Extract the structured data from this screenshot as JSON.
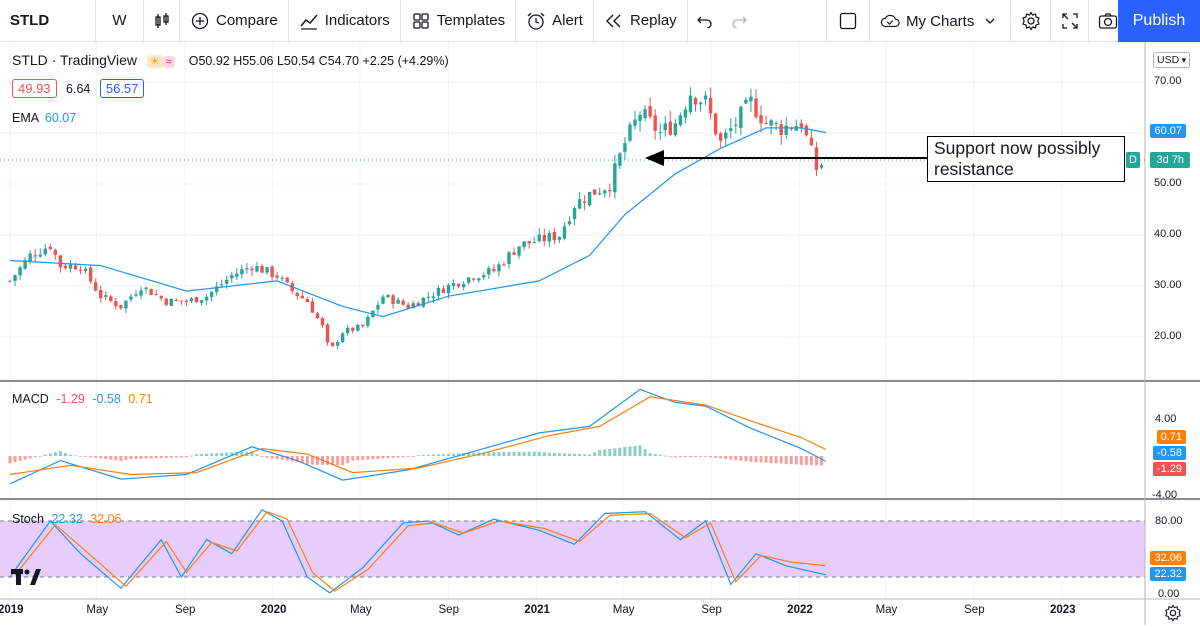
{
  "toolbar": {
    "symbol": "STLD",
    "interval": "W",
    "compare": "Compare",
    "indicators": "Indicators",
    "templates": "Templates",
    "alert": "Alert",
    "replay": "Replay",
    "my_charts": "My Charts",
    "publish": "Publish"
  },
  "legend": {
    "title": "STLD · TradingView",
    "ohlc": "O50.92 H55.06 L50.54 C54.70 +2.25 (+4.29%)",
    "bid": "49.93",
    "spread": "6.64",
    "ask": "56.57",
    "ema_label": "EMA",
    "ema_value": "60.07",
    "macd_label": "MACD",
    "macd_hist": "-1.29",
    "macd_line": "-0.58",
    "macd_signal": "0.71",
    "stoch_label": "Stoch",
    "stoch_k": "22.32",
    "stoch_d": "32.06"
  },
  "price_axis": {
    "currency": "USD",
    "ticks": [
      "70.00",
      "60.00",
      "50.00",
      "40.00",
      "30.00",
      "20.00"
    ],
    "ema_tag": "60.07",
    "countdown": "3d 7h",
    "last_tag_text": "D"
  },
  "macd_axis": {
    "ticks": [
      "4.00",
      "-4.00"
    ],
    "tags": [
      "0.71",
      "-0.58",
      "-1.29"
    ]
  },
  "stoch_axis": {
    "ticks": [
      "80.00",
      "0.00"
    ],
    "tags": [
      "32.06",
      "22.32"
    ]
  },
  "time_axis": [
    "2019",
    "May",
    "Sep",
    "2020",
    "May",
    "Sep",
    "2021",
    "May",
    "Sep",
    "2022",
    "May",
    "Sep",
    "2023"
  ],
  "annotation": "Support now possibly resistance",
  "colors": {
    "up": "#26a69a",
    "down": "#ef5350",
    "ema": "#2196f3",
    "signal": "#ff7f0e",
    "stoch_bg": "#e6cdfb",
    "accent": "#2962ff"
  },
  "chart_data": [
    {
      "type": "candlestick",
      "title": "STLD",
      "interval": "weekly",
      "y_range": [
        12,
        77
      ],
      "x_range": [
        "2018-12-31",
        "2023-02-06"
      ],
      "close_points": [
        {
          "date": "2019-01-01",
          "close": 31
        },
        {
          "date": "2019-01-29",
          "close": 36
        },
        {
          "date": "2019-02-26",
          "close": 38
        },
        {
          "date": "2019-03-12",
          "close": 34
        },
        {
          "date": "2019-04-09",
          "close": 34
        },
        {
          "date": "2019-05-07",
          "close": 28
        },
        {
          "date": "2019-06-04",
          "close": 26
        },
        {
          "date": "2019-07-02",
          "close": 30
        },
        {
          "date": "2019-08-06",
          "close": 27
        },
        {
          "date": "2019-09-03",
          "close": 27
        },
        {
          "date": "2019-10-01",
          "close": 28
        },
        {
          "date": "2019-11-05",
          "close": 32
        },
        {
          "date": "2019-12-03",
          "close": 34
        },
        {
          "date": "2020-01-07",
          "close": 32
        },
        {
          "date": "2020-01-28",
          "close": 29
        },
        {
          "date": "2020-02-18",
          "close": 27
        },
        {
          "date": "2020-03-10",
          "close": 22
        },
        {
          "date": "2020-03-20",
          "close": 17
        },
        {
          "date": "2020-04-07",
          "close": 21
        },
        {
          "date": "2020-05-05",
          "close": 22
        },
        {
          "date": "2020-06-02",
          "close": 28
        },
        {
          "date": "2020-07-07",
          "close": 26
        },
        {
          "date": "2020-08-04",
          "close": 28
        },
        {
          "date": "2020-09-01",
          "close": 30
        },
        {
          "date": "2020-10-06",
          "close": 32
        },
        {
          "date": "2020-11-03",
          "close": 33
        },
        {
          "date": "2020-12-08",
          "close": 38
        },
        {
          "date": "2021-01-05",
          "close": 39
        },
        {
          "date": "2021-02-02",
          "close": 40
        },
        {
          "date": "2021-02-23",
          "close": 46
        },
        {
          "date": "2021-03-16",
          "close": 48
        },
        {
          "date": "2021-04-13",
          "close": 50
        },
        {
          "date": "2021-05-04",
          "close": 58
        },
        {
          "date": "2021-05-25",
          "close": 64
        },
        {
          "date": "2021-06-22",
          "close": 60
        },
        {
          "date": "2021-07-13",
          "close": 62
        },
        {
          "date": "2021-08-03",
          "close": 68
        },
        {
          "date": "2021-08-24",
          "close": 66
        },
        {
          "date": "2021-09-14",
          "close": 58
        },
        {
          "date": "2021-10-05",
          "close": 62
        },
        {
          "date": "2021-10-26",
          "close": 66
        },
        {
          "date": "2021-11-16",
          "close": 62
        },
        {
          "date": "2021-12-07",
          "close": 61
        },
        {
          "date": "2022-01-04",
          "close": 62
        },
        {
          "date": "2022-01-25",
          "close": 53
        },
        {
          "date": "2022-02-07",
          "close": 54.7
        }
      ],
      "ema": [
        {
          "date": "2019-01-01",
          "value": 35
        },
        {
          "date": "2019-05-07",
          "value": 34
        },
        {
          "date": "2019-09-03",
          "value": 29
        },
        {
          "date": "2020-01-07",
          "value": 31
        },
        {
          "date": "2020-04-07",
          "value": 26
        },
        {
          "date": "2020-06-02",
          "value": 24
        },
        {
          "date": "2020-09-01",
          "value": 28
        },
        {
          "date": "2021-01-05",
          "value": 31
        },
        {
          "date": "2021-03-16",
          "value": 36
        },
        {
          "date": "2021-05-04",
          "value": 44
        },
        {
          "date": "2021-07-13",
          "value": 52
        },
        {
          "date": "2021-09-14",
          "value": 57
        },
        {
          "date": "2021-11-16",
          "value": 61
        },
        {
          "date": "2022-01-04",
          "value": 61
        },
        {
          "date": "2022-02-07",
          "value": 60.07
        }
      ],
      "last_close": 54.7,
      "support_resistance_level": 54.2
    },
    {
      "type": "line",
      "title": "MACD",
      "y_range": [
        -4.6,
        7.8
      ],
      "series": [
        {
          "name": "MACD",
          "points": [
            {
              "date": "2019-01-01",
              "value": -3.0
            },
            {
              "date": "2019-03-12",
              "value": -0.5
            },
            {
              "date": "2019-06-04",
              "value": -2.5
            },
            {
              "date": "2019-09-03",
              "value": -2.0
            },
            {
              "date": "2019-12-03",
              "value": 1.0
            },
            {
              "date": "2020-02-04",
              "value": -0.5
            },
            {
              "date": "2020-04-07",
              "value": -2.6
            },
            {
              "date": "2020-07-07",
              "value": -1.5
            },
            {
              "date": "2020-10-06",
              "value": 0.5
            },
            {
              "date": "2021-01-05",
              "value": 2.5
            },
            {
              "date": "2021-03-16",
              "value": 3.2
            },
            {
              "date": "2021-05-25",
              "value": 7.2
            },
            {
              "date": "2021-07-13",
              "value": 5.8
            },
            {
              "date": "2021-08-24",
              "value": 5.4
            },
            {
              "date": "2021-10-26",
              "value": 3.0
            },
            {
              "date": "2022-01-04",
              "value": 0.8
            },
            {
              "date": "2022-02-07",
              "value": -0.58
            }
          ]
        },
        {
          "name": "Signal",
          "points": [
            {
              "date": "2019-01-01",
              "value": -2.0
            },
            {
              "date": "2019-03-26",
              "value": -1.0
            },
            {
              "date": "2019-06-18",
              "value": -2.0
            },
            {
              "date": "2019-09-17",
              "value": -1.8
            },
            {
              "date": "2019-12-17",
              "value": 0.8
            },
            {
              "date": "2020-02-18",
              "value": 0.2
            },
            {
              "date": "2020-04-21",
              "value": -1.8
            },
            {
              "date": "2020-07-21",
              "value": -1.3
            },
            {
              "date": "2020-10-20",
              "value": 0.3
            },
            {
              "date": "2021-01-19",
              "value": 2.2
            },
            {
              "date": "2021-03-30",
              "value": 3.2
            },
            {
              "date": "2021-06-08",
              "value": 6.4
            },
            {
              "date": "2021-08-24",
              "value": 5.5
            },
            {
              "date": "2021-11-02",
              "value": 3.6
            },
            {
              "date": "2022-01-04",
              "value": 2.0
            },
            {
              "date": "2022-02-07",
              "value": 0.71
            }
          ]
        }
      ],
      "histogram_last": -1.29
    },
    {
      "type": "line",
      "title": "Stoch",
      "y_range": [
        0,
        100
      ],
      "bands": [
        20,
        80
      ],
      "series": [
        {
          "name": "%K",
          "points": [
            {
              "date": "2019-01-01",
              "value": 20
            },
            {
              "date": "2019-02-26",
              "value": 80
            },
            {
              "date": "2019-04-09",
              "value": 45
            },
            {
              "date": "2019-06-04",
              "value": 8
            },
            {
              "date": "2019-07-30",
              "value": 60
            },
            {
              "date": "2019-08-27",
              "value": 20
            },
            {
              "date": "2019-10-01",
              "value": 60
            },
            {
              "date": "2019-11-05",
              "value": 45
            },
            {
              "date": "2019-12-17",
              "value": 92
            },
            {
              "date": "2020-01-14",
              "value": 80
            },
            {
              "date": "2020-02-18",
              "value": 20
            },
            {
              "date": "2020-03-20",
              "value": 3
            },
            {
              "date": "2020-05-05",
              "value": 30
            },
            {
              "date": "2020-06-30",
              "value": 78
            },
            {
              "date": "2020-08-04",
              "value": 80
            },
            {
              "date": "2020-09-15",
              "value": 65
            },
            {
              "date": "2020-11-03",
              "value": 82
            },
            {
              "date": "2021-01-05",
              "value": 70
            },
            {
              "date": "2021-02-23",
              "value": 55
            },
            {
              "date": "2021-04-06",
              "value": 88
            },
            {
              "date": "2021-06-01",
              "value": 90
            },
            {
              "date": "2021-07-20",
              "value": 60
            },
            {
              "date": "2021-08-24",
              "value": 80
            },
            {
              "date": "2021-09-28",
              "value": 12
            },
            {
              "date": "2021-11-02",
              "value": 45
            },
            {
              "date": "2021-12-14",
              "value": 32
            },
            {
              "date": "2022-02-07",
              "value": 22.32
            }
          ]
        },
        {
          "name": "%D",
          "points": [
            {
              "date": "2019-01-08",
              "value": 22
            },
            {
              "date": "2019-03-05",
              "value": 76
            },
            {
              "date": "2019-04-16",
              "value": 48
            },
            {
              "date": "2019-06-11",
              "value": 10
            },
            {
              "date": "2019-08-06",
              "value": 58
            },
            {
              "date": "2019-09-03",
              "value": 25
            },
            {
              "date": "2019-10-08",
              "value": 57
            },
            {
              "date": "2019-11-12",
              "value": 48
            },
            {
              "date": "2019-12-24",
              "value": 90
            },
            {
              "date": "2020-01-21",
              "value": 82
            },
            {
              "date": "2020-02-25",
              "value": 25
            },
            {
              "date": "2020-03-27",
              "value": 5
            },
            {
              "date": "2020-05-12",
              "value": 28
            },
            {
              "date": "2020-07-07",
              "value": 75
            },
            {
              "date": "2020-08-11",
              "value": 78
            },
            {
              "date": "2020-09-22",
              "value": 67
            },
            {
              "date": "2020-11-10",
              "value": 80
            },
            {
              "date": "2021-01-12",
              "value": 72
            },
            {
              "date": "2021-03-02",
              "value": 58
            },
            {
              "date": "2021-04-13",
              "value": 86
            },
            {
              "date": "2021-06-08",
              "value": 88
            },
            {
              "date": "2021-07-27",
              "value": 62
            },
            {
              "date": "2021-08-31",
              "value": 78
            },
            {
              "date": "2021-10-05",
              "value": 15
            },
            {
              "date": "2021-11-09",
              "value": 43
            },
            {
              "date": "2021-12-21",
              "value": 36
            },
            {
              "date": "2022-02-07",
              "value": 32.06
            }
          ]
        }
      ]
    }
  ]
}
